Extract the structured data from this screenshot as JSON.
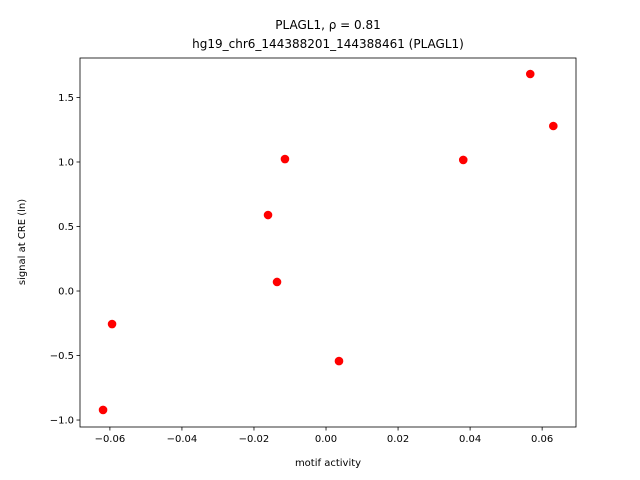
{
  "chart_data": {
    "type": "scatter",
    "title": "PLAGL1, ρ = 0.81",
    "subtitle": "hg19_chr6_144388201_144388461 (PLAGL1)",
    "x_label": "motif activity",
    "y_label": "signal at CRE (ln)",
    "color": "#ff0000",
    "x": [
      -0.0619,
      -0.0594,
      -0.0161,
      -0.0136,
      -0.0114,
      0.0036,
      0.0381,
      0.0567,
      0.0631
    ],
    "values": [
      -0.922,
      -0.256,
      0.589,
      0.07,
      1.023,
      -0.543,
      1.016,
      1.682,
      1.279
    ],
    "xlim": [
      -0.0683,
      0.0694
    ],
    "ylim": [
      -1.054,
      1.806
    ],
    "xticks": [
      {
        "value": -0.06,
        "label": "−0.06"
      },
      {
        "value": -0.04,
        "label": "−0.04"
      },
      {
        "value": -0.02,
        "label": "−0.02"
      },
      {
        "value": 0,
        "label": "0.00"
      },
      0.02,
      0.04,
      0.06
    ],
    "yticks": [
      {
        "value": -1,
        "label": "−1.0"
      },
      {
        "value": -0.5,
        "label": "−0.5"
      },
      {
        "value": 0,
        "label": "0.0"
      },
      0.5,
      {
        "value": 1,
        "label": "1.0"
      },
      1.5
    ]
  }
}
